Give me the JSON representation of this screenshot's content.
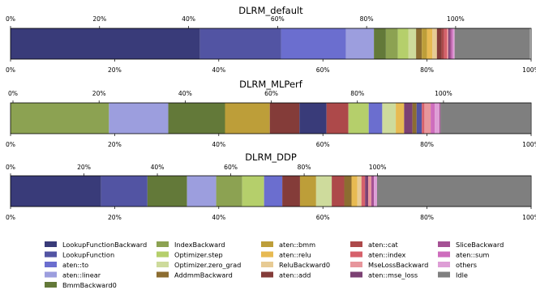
{
  "chart_data": {
    "type": "bar",
    "orientation": "horizontal-stacked",
    "legend_position": "bottom",
    "grid": false,
    "categories": [
      "LookupFunctionBackward",
      "LookupFunction",
      "aten::to",
      "aten::linear",
      "BmmBackward0",
      "IndexBackward",
      "Optimizer.step",
      "Optimizer.zero_grad",
      "AddmmBackward",
      "aten::bmm",
      "aten::relu",
      "ReluBackward0",
      "aten::add",
      "aten::cat",
      "aten::index",
      "MseLossBackward",
      "aten::mse_loss",
      "SliceBackward",
      "aten::sum",
      "others",
      "Idle"
    ],
    "colors": {
      "LookupFunctionBackward": "#393b79",
      "LookupFunction": "#5254a3",
      "aten::to": "#6b6ecf",
      "aten::linear": "#9c9ede",
      "BmmBackward0": "#637939",
      "IndexBackward": "#8ca252",
      "Optimizer.step": "#b5cf6b",
      "Optimizer.zero_grad": "#cedb9c",
      "AddmmBackward": "#8c6d31",
      "aten::bmm": "#bd9e39",
      "aten::relu": "#e7ba52",
      "ReluBackward0": "#e7cb94",
      "aten::add": "#843c39",
      "aten::cat": "#ad494a",
      "aten::index": "#d6616b",
      "MseLossBackward": "#e7969c",
      "aten::mse_loss": "#7b4173",
      "SliceBackward": "#a55194",
      "aten::sum": "#ce6dbd",
      "others": "#de9ed6",
      "Idle": "#7f7f7f"
    },
    "charts": [
      {
        "title": "DLRM_default",
        "segments": [
          {
            "name": "LookupFunctionBackward",
            "value": 36.4
          },
          {
            "name": "LookupFunction",
            "value": 15.6
          },
          {
            "name": "aten::to",
            "value": 12.4
          },
          {
            "name": "aten::linear",
            "value": 5.4
          },
          {
            "name": "BmmBackward0",
            "value": 2.3
          },
          {
            "name": "IndexBackward",
            "value": 2.3
          },
          {
            "name": "Optimizer.step",
            "value": 2.0
          },
          {
            "name": "Optimizer.zero_grad",
            "value": 1.5
          },
          {
            "name": "AddmmBackward",
            "value": 1.1
          },
          {
            "name": "aten::bmm",
            "value": 1.0
          },
          {
            "name": "aten::relu",
            "value": 1.0
          },
          {
            "name": "ReluBackward0",
            "value": 0.9
          },
          {
            "name": "aten::add",
            "value": 0.9
          },
          {
            "name": "aten::cat",
            "value": 0.5
          },
          {
            "name": "aten::index",
            "value": 0.5
          },
          {
            "name": "MseLossBackward",
            "value": 0.3
          },
          {
            "name": "aten::mse_loss",
            "value": 0.3
          },
          {
            "name": "SliceBackward",
            "value": 0.3
          },
          {
            "name": "aten::sum",
            "value": 0.3
          },
          {
            "name": "others",
            "value": 0.3
          },
          {
            "name": "Idle",
            "value": 14.5
          }
        ]
      },
      {
        "title": "DLRM_MLPerf",
        "segments": [
          {
            "name": "IndexBackward",
            "value": 18.9
          },
          {
            "name": "aten::linear",
            "value": 11.4
          },
          {
            "name": "BmmBackward0",
            "value": 10.9
          },
          {
            "name": "aten::bmm",
            "value": 8.6
          },
          {
            "name": "aten::add",
            "value": 5.7
          },
          {
            "name": "LookupFunctionBackward",
            "value": 5.2
          },
          {
            "name": "aten::cat",
            "value": 4.2
          },
          {
            "name": "Optimizer.step",
            "value": 3.9
          },
          {
            "name": "aten::to",
            "value": 2.6
          },
          {
            "name": "Optimizer.zero_grad",
            "value": 2.6
          },
          {
            "name": "aten::relu",
            "value": 1.6
          },
          {
            "name": "aten::mse_loss",
            "value": 1.6
          },
          {
            "name": "AddmmBackward",
            "value": 0.8
          },
          {
            "name": "LookupFunction",
            "value": 1.0
          },
          {
            "name": "aten::index",
            "value": 0.5
          },
          {
            "name": "MseLossBackward",
            "value": 1.2
          },
          {
            "name": "aten::sum",
            "value": 0.8
          },
          {
            "name": "others",
            "value": 0.9
          },
          {
            "name": "SliceBackward",
            "value": 0.2
          },
          {
            "name": "Idle",
            "value": 17.3
          }
        ]
      },
      {
        "title": "DLRM_DDP",
        "segments": [
          {
            "name": "LookupFunctionBackward",
            "value": 17.4
          },
          {
            "name": "LookupFunction",
            "value": 8.9
          },
          {
            "name": "BmmBackward0",
            "value": 7.6
          },
          {
            "name": "aten::linear",
            "value": 5.6
          },
          {
            "name": "IndexBackward",
            "value": 5.0
          },
          {
            "name": "Optimizer.step",
            "value": 4.2
          },
          {
            "name": "aten::to",
            "value": 3.5
          },
          {
            "name": "aten::add",
            "value": 3.4
          },
          {
            "name": "aten::bmm",
            "value": 3.1
          },
          {
            "name": "Optimizer.zero_grad",
            "value": 3.0
          },
          {
            "name": "aten::cat",
            "value": 2.4
          },
          {
            "name": "AddmmBackward",
            "value": 1.4
          },
          {
            "name": "aten::relu",
            "value": 1.1
          },
          {
            "name": "ReluBackward0",
            "value": 0.8
          },
          {
            "name": "aten::index",
            "value": 0.7
          },
          {
            "name": "aten::mse_loss",
            "value": 0.6
          },
          {
            "name": "MseLossBackward",
            "value": 0.6
          },
          {
            "name": "SliceBackward",
            "value": 0.5
          },
          {
            "name": "others",
            "value": 0.6
          },
          {
            "name": "Idle",
            "value": 29.5
          }
        ]
      }
    ],
    "axis": {
      "xlim": [
        0,
        100
      ],
      "bottom_ticks": [
        "0%",
        "20%",
        "40%",
        "60%",
        "80%",
        "100%"
      ],
      "top_ticks": [
        "0%",
        "20%",
        "40%",
        "60%",
        "80%",
        "100%"
      ]
    },
    "legend_columns": [
      [
        "LookupFunctionBackward",
        "LookupFunction",
        "aten::to",
        "aten::linear",
        "BmmBackward0"
      ],
      [
        "IndexBackward",
        "Optimizer.step",
        "Optimizer.zero_grad",
        "AddmmBackward"
      ],
      [
        "aten::bmm",
        "aten::relu",
        "ReluBackward0",
        "aten::add"
      ],
      [
        "aten::cat",
        "aten::index",
        "MseLossBackward",
        "aten::mse_loss"
      ],
      [
        "SliceBackward",
        "aten::sum",
        "others",
        "Idle"
      ]
    ]
  }
}
